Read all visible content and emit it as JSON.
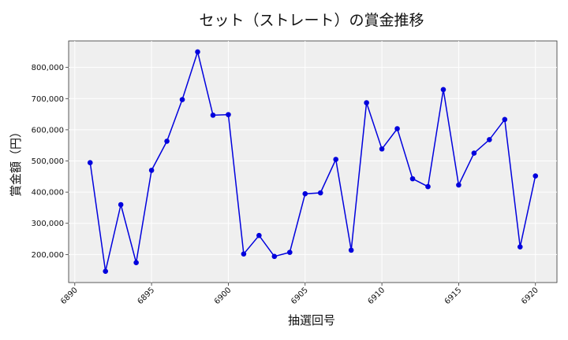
{
  "chart_data": {
    "type": "line",
    "title": "セット（ストレート）の賞金推移",
    "xlabel": "抽選回号",
    "ylabel": "賞金額（円）",
    "xlim": [
      6889.6,
      6921.4
    ],
    "ylim": [
      110000,
      885000
    ],
    "xticks": [
      6890,
      6895,
      6900,
      6905,
      6910,
      6915,
      6920
    ],
    "yticks": [
      200000,
      300000,
      400000,
      500000,
      600000,
      700000,
      800000
    ],
    "ytick_labels": [
      "200,000",
      "300,000",
      "400,000",
      "500,000",
      "600,000",
      "700,000",
      "800,000"
    ],
    "grid": true,
    "series": [
      {
        "color": "#0000dd",
        "x": [
          6891,
          6892,
          6893,
          6894,
          6895,
          6896,
          6897,
          6898,
          6899,
          6900,
          6901,
          6902,
          6903,
          6904,
          6905,
          6906,
          6907,
          6908,
          6909,
          6910,
          6911,
          6912,
          6913,
          6914,
          6915,
          6916,
          6917,
          6918,
          6919,
          6920
        ],
        "y": [
          494400,
          146200,
          359900,
          173800,
          470000,
          563300,
          696700,
          849900,
          646800,
          648600,
          201700,
          261000,
          193700,
          206900,
          394700,
          397700,
          505100,
          213800,
          686800,
          538500,
          603500,
          442900,
          417700,
          729000,
          422900,
          525100,
          568400,
          633000,
          224400,
          452000
        ]
      }
    ]
  }
}
